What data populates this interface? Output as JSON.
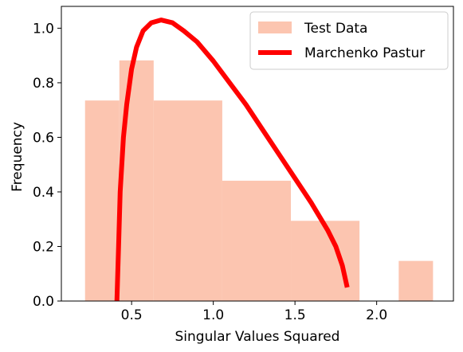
{
  "chart_data": {
    "type": "bar",
    "xlabel": "Singular Values Squared",
    "ylabel": "Frequency",
    "xlim": [
      0.07,
      2.47
    ],
    "ylim": [
      0.0,
      1.08
    ],
    "xticks": [
      0.5,
      1.0,
      1.5,
      2.0
    ],
    "yticks": [
      0.0,
      0.2,
      0.4,
      0.6,
      0.8,
      1.0
    ],
    "histogram": {
      "name": "Test Data",
      "color": "#fcc5b0",
      "bins": [
        {
          "x0": 0.215,
          "x1": 0.425,
          "value": 0.735
        },
        {
          "x0": 0.425,
          "x1": 0.635,
          "value": 0.882
        },
        {
          "x0": 0.635,
          "x1": 1.055,
          "value": 0.735
        },
        {
          "x0": 1.055,
          "x1": 1.475,
          "value": 0.441
        },
        {
          "x0": 1.475,
          "x1": 1.895,
          "value": 0.294
        },
        {
          "x0": 2.135,
          "x1": 2.345,
          "value": 0.147
        }
      ]
    },
    "curve": {
      "name": "Marchenko Pastur",
      "color": "#ff0000",
      "x": [
        0.41,
        0.42,
        0.43,
        0.45,
        0.47,
        0.5,
        0.53,
        0.57,
        0.62,
        0.68,
        0.75,
        0.82,
        0.9,
        1.0,
        1.1,
        1.2,
        1.3,
        1.4,
        1.5,
        1.6,
        1.7,
        1.75,
        1.79,
        1.82
      ],
      "y": [
        0.0,
        0.2,
        0.4,
        0.6,
        0.72,
        0.85,
        0.93,
        0.99,
        1.02,
        1.03,
        1.02,
        0.99,
        0.95,
        0.88,
        0.8,
        0.72,
        0.63,
        0.54,
        0.45,
        0.36,
        0.26,
        0.2,
        0.13,
        0.05
      ]
    },
    "legend": {
      "position": "top-right",
      "entries": [
        "Test Data",
        "Marchenko Pastur"
      ]
    }
  }
}
